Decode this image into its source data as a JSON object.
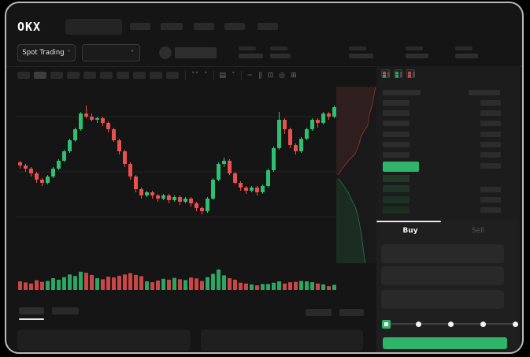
{
  "brand": {
    "name": "OKX"
  },
  "market_dropdown": {
    "label": "Spot Trading",
    "chevron": "˅"
  },
  "pair_dropdown": {
    "chevron": "˅"
  },
  "chart_toolbar": {
    "icons": [
      {
        "name": "indicators-collapse-icon",
        "glyph": "˅˅"
      },
      {
        "name": "chevron-down-icon",
        "glyph": "˅"
      },
      {
        "name": "candle-style-icon",
        "glyph": "▤"
      },
      {
        "name": "candle-style-chevron-icon",
        "glyph": "˅"
      },
      {
        "name": "line-overlay-icon",
        "glyph": "~"
      },
      {
        "name": "compare-icon",
        "glyph": "∥"
      },
      {
        "name": "snapshot-icon",
        "glyph": "⊡"
      },
      {
        "name": "settings-icon",
        "glyph": "◎"
      },
      {
        "name": "fullscreen-icon",
        "glyph": "⊞"
      }
    ]
  },
  "orderbook": {
    "view_modes": [
      "combined-book",
      "bids-only-book",
      "asks-only-book"
    ],
    "last_price_color": "#2fb46a"
  },
  "trade_tabs": {
    "buy": "Buy",
    "sell": "Sell"
  },
  "slider": {
    "steps": 5,
    "selected_step": 1
  },
  "colors": {
    "candle_up": "#2fbf71",
    "candle_down": "#e9504e",
    "accent_green": "#2fb46a",
    "grid_line": "#222222"
  },
  "chart_data": {
    "type": "candlestick",
    "title": "",
    "xlabel": "",
    "ylabel": "",
    "value_range": [
      0,
      100
    ],
    "grid": true,
    "candles_ohlc": [
      [
        57,
        58,
        53,
        55
      ],
      [
        55,
        56,
        51,
        53
      ],
      [
        53,
        54,
        48,
        50
      ],
      [
        50,
        51,
        44,
        46
      ],
      [
        46,
        47,
        42,
        44
      ],
      [
        44,
        49,
        43,
        48
      ],
      [
        48,
        54,
        47,
        53
      ],
      [
        53,
        59,
        52,
        58
      ],
      [
        58,
        65,
        57,
        64
      ],
      [
        64,
        72,
        63,
        71
      ],
      [
        71,
        79,
        70,
        78
      ],
      [
        78,
        89,
        77,
        88
      ],
      [
        88,
        93,
        85,
        86
      ],
      [
        86,
        88,
        83,
        84
      ],
      [
        84,
        86,
        82,
        85
      ],
      [
        85,
        86,
        80,
        82
      ],
      [
        82,
        83,
        76,
        78
      ],
      [
        78,
        79,
        70,
        71
      ],
      [
        71,
        72,
        62,
        64
      ],
      [
        64,
        65,
        54,
        56
      ],
      [
        56,
        57,
        46,
        48
      ],
      [
        48,
        49,
        38,
        40
      ],
      [
        40,
        41,
        34,
        36
      ],
      [
        36,
        39,
        35,
        38
      ],
      [
        38,
        39,
        34,
        36
      ],
      [
        36,
        37,
        32,
        34
      ],
      [
        34,
        37,
        33,
        36
      ],
      [
        36,
        37,
        31,
        33
      ],
      [
        33,
        36,
        32,
        35
      ],
      [
        35,
        36,
        30,
        32
      ],
      [
        32,
        35,
        31,
        34
      ],
      [
        34,
        35,
        29,
        31
      ],
      [
        31,
        32,
        26,
        28
      ],
      [
        28,
        29,
        24,
        26
      ],
      [
        26,
        35,
        25,
        34
      ],
      [
        34,
        47,
        33,
        46
      ],
      [
        46,
        57,
        45,
        56
      ],
      [
        56,
        60,
        54,
        58
      ],
      [
        58,
        59,
        49,
        50
      ],
      [
        50,
        51,
        43,
        44
      ],
      [
        44,
        45,
        39,
        41
      ],
      [
        41,
        42,
        37,
        39
      ],
      [
        39,
        42,
        38,
        41
      ],
      [
        41,
        42,
        36,
        38
      ],
      [
        38,
        43,
        37,
        42
      ],
      [
        42,
        53,
        41,
        52
      ],
      [
        52,
        67,
        51,
        66
      ],
      [
        66,
        89,
        65,
        84
      ],
      [
        84,
        85,
        75,
        78
      ],
      [
        78,
        79,
        66,
        68
      ],
      [
        68,
        69,
        62,
        64
      ],
      [
        64,
        73,
        63,
        72
      ],
      [
        72,
        79,
        71,
        78
      ],
      [
        78,
        85,
        77,
        84
      ],
      [
        84,
        85,
        79,
        82
      ],
      [
        82,
        89,
        81,
        88
      ],
      [
        88,
        89,
        84,
        86
      ],
      [
        86,
        93,
        85,
        92
      ]
    ],
    "volumes": [
      40,
      35,
      30,
      45,
      38,
      42,
      55,
      48,
      60,
      72,
      65,
      85,
      80,
      70,
      55,
      50,
      62,
      58,
      66,
      72,
      78,
      70,
      64,
      40,
      36,
      44,
      52,
      48,
      56,
      50,
      46,
      58,
      54,
      42,
      60,
      75,
      95,
      68,
      55,
      48,
      34,
      30,
      26,
      22,
      28,
      28,
      34,
      40,
      30,
      36,
      38,
      42,
      40,
      36,
      30,
      26,
      18,
      24
    ]
  },
  "depth_chart": {
    "type": "area",
    "orientation": "vertical",
    "asks_profile": [
      [
        0.98,
        0
      ],
      [
        0.93,
        0.06
      ],
      [
        0.9,
        0.1
      ],
      [
        0.82,
        0.16
      ],
      [
        0.78,
        0.22
      ],
      [
        0.62,
        0.28
      ],
      [
        0.56,
        0.33
      ],
      [
        0.47,
        0.38
      ],
      [
        0.3,
        0.42
      ],
      [
        0.16,
        0.46
      ],
      [
        0.05,
        0.5
      ]
    ],
    "bids_profile": [
      [
        0.05,
        0.52
      ],
      [
        0.18,
        0.56
      ],
      [
        0.3,
        0.6
      ],
      [
        0.38,
        0.64
      ],
      [
        0.47,
        0.68
      ],
      [
        0.54,
        0.73
      ],
      [
        0.58,
        0.78
      ],
      [
        0.63,
        0.84
      ],
      [
        0.66,
        0.9
      ],
      [
        0.69,
        0.95
      ],
      [
        0.72,
        1.0
      ]
    ],
    "asks_color": "#e9504e",
    "bids_color": "#2fbf71"
  }
}
